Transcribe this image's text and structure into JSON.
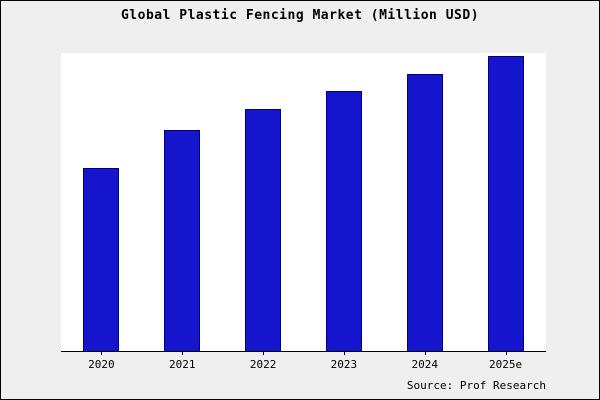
{
  "chart_data": {
    "type": "bar",
    "title": "Global Plastic Fencing Market (Million USD)",
    "categories": [
      "2020",
      "2021",
      "2022",
      "2023",
      "2024",
      "2025e"
    ],
    "values": [
      62,
      75,
      82,
      88,
      94,
      100
    ],
    "xlabel": "",
    "ylabel": "",
    "ylim": [
      0,
      101
    ],
    "grid": false,
    "legend": "none",
    "bar_color": "#1515cd",
    "bar_edge_color": "#000080",
    "plot_background": "#ffffff",
    "page_background": "#efefef"
  },
  "footer": {
    "source_label": "Source: Prof Research"
  }
}
